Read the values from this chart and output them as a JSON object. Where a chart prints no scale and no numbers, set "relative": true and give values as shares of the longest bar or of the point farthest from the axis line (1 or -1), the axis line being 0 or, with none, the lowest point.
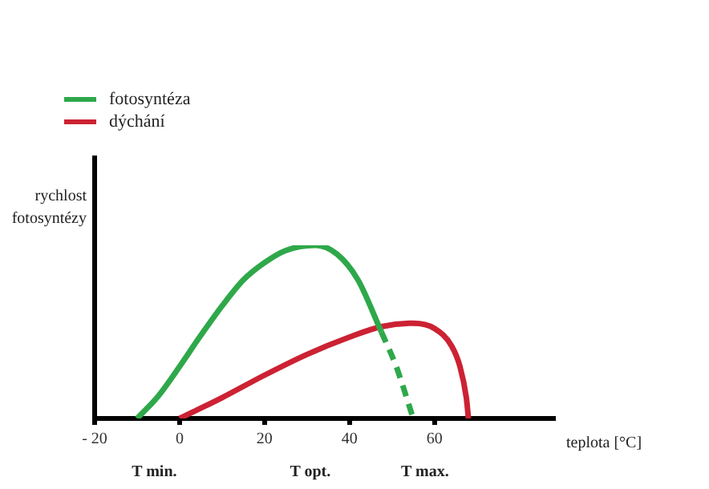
{
  "chart_data": {
    "type": "line",
    "relative": true,
    "xlabel": "teplota [°C]",
    "ylabel": "rychlost fotosyntézy",
    "xlim": [
      -20,
      88
    ],
    "xticks": [
      {
        "value": -20,
        "label": "- 20"
      },
      0,
      20,
      40,
      60
    ],
    "grid": false,
    "legend": "top left",
    "marker": "none",
    "series": [
      {
        "name": "fotosyntéza",
        "color": "#2ea84a",
        "line_style": "solid",
        "x": [
          -10,
          -5,
          0,
          5,
          10,
          15,
          20,
          25,
          32,
          37,
          42,
          47.5
        ],
        "values": [
          0,
          0.13,
          0.3,
          0.48,
          0.65,
          0.8,
          0.9,
          0.97,
          1,
          0.95,
          0.8,
          0.5
        ]
      },
      {
        "color": "#2ea84a",
        "line_style": "dashed",
        "x": [
          47.5,
          51,
          55
        ],
        "values": [
          0.5,
          0.3,
          0
        ]
      },
      {
        "name": "dýchání",
        "color": "#cc2233",
        "line_style": "solid",
        "x": [
          0,
          10,
          20,
          30,
          40,
          47.5,
          55,
          60,
          64,
          66,
          67.5,
          68
        ],
        "values": [
          0,
          0.12,
          0.25,
          0.37,
          0.47,
          0.53,
          0.55,
          0.52,
          0.42,
          0.3,
          0.12,
          0
        ]
      }
    ],
    "annotations": [
      "T min.",
      "T opt.",
      "T max."
    ]
  }
}
